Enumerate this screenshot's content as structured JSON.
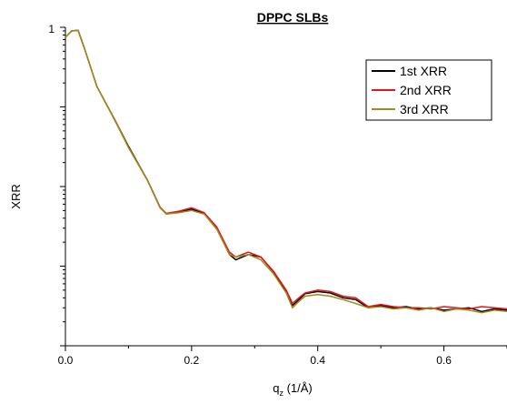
{
  "chart_data": {
    "type": "line",
    "title": "DPPC SLBs",
    "xlabel": "q",
    "xlabel_sub": "z",
    "xlabel_unit": " (1/Å)",
    "ylabel": "XRR",
    "xlim": [
      0.0,
      0.7
    ],
    "x_ticks": [
      0.0,
      0.2,
      0.4,
      0.6
    ],
    "x_tick_labels": [
      "0.0",
      "0.2",
      "0.4",
      "0.6"
    ],
    "y_scale": "log",
    "y_tick_labels": [
      "1"
    ],
    "grid": false,
    "legend_position": "top-right",
    "series": [
      {
        "name": "1st XRR",
        "color": "#000000",
        "x": [
          0.0,
          0.01,
          0.02,
          0.03,
          0.05,
          0.08,
          0.1,
          0.13,
          0.15,
          0.16,
          0.18,
          0.2,
          0.22,
          0.24,
          0.26,
          0.27,
          0.29,
          0.31,
          0.33,
          0.35,
          0.36,
          0.37,
          0.38,
          0.4,
          0.42,
          0.44,
          0.46,
          0.48,
          0.5,
          0.52,
          0.54,
          0.56,
          0.58,
          0.6,
          0.62,
          0.64,
          0.66,
          0.68,
          0.7
        ],
        "y": [
          0.75,
          0.9,
          0.92,
          0.55,
          0.18,
          0.065,
          0.032,
          0.012,
          0.0055,
          0.0045,
          0.0048,
          0.0052,
          0.0046,
          0.003,
          0.0014,
          0.0012,
          0.0014,
          0.0013,
          0.00085,
          0.00048,
          0.00032,
          0.00038,
          0.00045,
          0.00048,
          0.00046,
          0.0004,
          0.00038,
          0.0003,
          0.00032,
          0.0003,
          0.00031,
          0.00029,
          0.0003,
          0.00028,
          0.00029,
          0.0003,
          0.00027,
          0.00029,
          0.00028
        ]
      },
      {
        "name": "2nd XRR",
        "color": "#e8141a",
        "x": [
          0.0,
          0.01,
          0.02,
          0.03,
          0.05,
          0.08,
          0.1,
          0.13,
          0.15,
          0.16,
          0.18,
          0.2,
          0.22,
          0.24,
          0.26,
          0.27,
          0.29,
          0.31,
          0.33,
          0.35,
          0.36,
          0.37,
          0.38,
          0.4,
          0.42,
          0.44,
          0.46,
          0.48,
          0.5,
          0.52,
          0.54,
          0.56,
          0.58,
          0.6,
          0.62,
          0.64,
          0.66,
          0.68,
          0.7
        ],
        "y": [
          0.75,
          0.9,
          0.92,
          0.55,
          0.18,
          0.065,
          0.031,
          0.012,
          0.0055,
          0.0046,
          0.0049,
          0.0054,
          0.0047,
          0.0031,
          0.0015,
          0.0013,
          0.0015,
          0.0013,
          0.00086,
          0.0005,
          0.00034,
          0.0004,
          0.00046,
          0.0005,
          0.00048,
          0.00042,
          0.0004,
          0.00031,
          0.00033,
          0.00031,
          0.0003,
          0.0003,
          0.00029,
          0.00031,
          0.0003,
          0.00029,
          0.00031,
          0.0003,
          0.00029
        ]
      },
      {
        "name": "3rd XRR",
        "color": "#9a8f1e",
        "x": [
          0.0,
          0.01,
          0.02,
          0.03,
          0.05,
          0.08,
          0.1,
          0.13,
          0.15,
          0.16,
          0.18,
          0.2,
          0.22,
          0.24,
          0.26,
          0.27,
          0.29,
          0.31,
          0.33,
          0.35,
          0.36,
          0.37,
          0.38,
          0.4,
          0.42,
          0.44,
          0.46,
          0.48,
          0.5,
          0.52,
          0.54,
          0.56,
          0.58,
          0.6,
          0.62,
          0.64,
          0.66,
          0.68,
          0.7
        ],
        "y": [
          0.75,
          0.9,
          0.92,
          0.55,
          0.18,
          0.064,
          0.031,
          0.012,
          0.0054,
          0.0045,
          0.0047,
          0.005,
          0.0045,
          0.0029,
          0.0014,
          0.0013,
          0.0014,
          0.0012,
          0.0008,
          0.00046,
          0.0003,
          0.00036,
          0.00042,
          0.00044,
          0.00042,
          0.00038,
          0.00034,
          0.0003,
          0.00031,
          0.00029,
          0.0003,
          0.00028,
          0.0003,
          0.00027,
          0.00029,
          0.00028,
          0.00026,
          0.00028,
          0.00027
        ]
      }
    ]
  }
}
